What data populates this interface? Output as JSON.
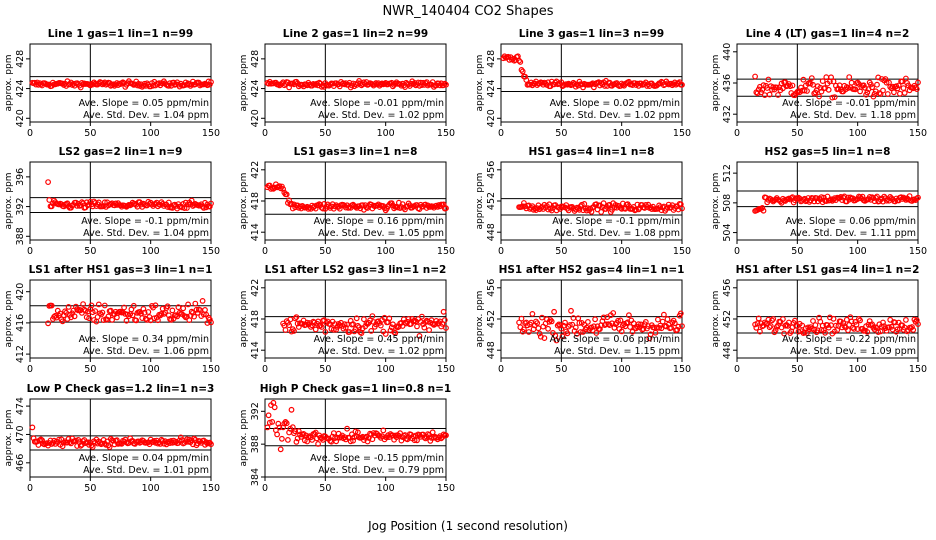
{
  "title": "NWR_140404  CO2 Shapes",
  "xlabel": "Jog Position (1 second resolution)",
  "ylabel": "approx. ppm",
  "slope_prefix": "Ave. Slope = ",
  "slope_unit": " ppm/min",
  "std_prefix": "Ave. Std. Dev. = ",
  "std_unit": " ppm",
  "marker_color": "#ff0000",
  "chart_data": [
    {
      "type": "scatter",
      "title": "Line 1 gas=1 lin=1 n=99",
      "xlim": [
        0,
        150
      ],
      "ylim": [
        419.5,
        430
      ],
      "yticks": [
        420,
        424,
        428
      ],
      "xticks": [
        0,
        50,
        100,
        150
      ],
      "vline": 50,
      "hlines": [
        425.6,
        423.6
      ],
      "mean": 424.6,
      "noise": 0.25,
      "xstart": 2,
      "xend": 150,
      "slope": "0.05",
      "std": "1.04",
      "pattern": "flat"
    },
    {
      "type": "scatter",
      "title": "Line 2 gas=1 lin=2 n=99",
      "xlim": [
        0,
        150
      ],
      "ylim": [
        419.5,
        430
      ],
      "yticks": [
        420,
        424,
        428
      ],
      "xticks": [
        0,
        50,
        100,
        150
      ],
      "vline": 50,
      "hlines": [
        425.6,
        423.6
      ],
      "mean": 424.6,
      "noise": 0.25,
      "xstart": 2,
      "xend": 150,
      "slope": "-0.01",
      "std": "1.02",
      "pattern": "flat"
    },
    {
      "type": "scatter",
      "title": "Line 3 gas=1 lin=3 n=99",
      "xlim": [
        0,
        150
      ],
      "ylim": [
        419.5,
        430
      ],
      "yticks": [
        420,
        424,
        428
      ],
      "xticks": [
        0,
        50,
        100,
        150
      ],
      "vline": 50,
      "hlines": [
        425.6,
        423.6
      ],
      "mean": 424.6,
      "noise": 0.25,
      "xstart": 2,
      "xend": 150,
      "slope": "0.02",
      "std": "1.02",
      "pattern": "early_high",
      "early_val": 428.0
    },
    {
      "type": "scatter",
      "title": "Line 4 (LT) gas=1 lin=4 n=2",
      "xlim": [
        0,
        150
      ],
      "ylim": [
        431,
        441
      ],
      "yticks": [
        432,
        436,
        440
      ],
      "xticks": [
        0,
        50,
        100,
        150
      ],
      "vline": 50,
      "hlines": [
        436.5,
        434.3
      ],
      "mean": 435.4,
      "noise": 0.9,
      "xstart": 15,
      "xend": 150,
      "slope": "-0.01",
      "std": "1.18",
      "pattern": "noisy"
    },
    {
      "type": "scatter",
      "title": "LS2 gas=2 lin=1 n=9",
      "xlim": [
        0,
        150
      ],
      "ylim": [
        387.5,
        398
      ],
      "yticks": [
        388,
        392,
        396
      ],
      "xticks": [
        0,
        50,
        100,
        150
      ],
      "vline": 50,
      "hlines": [
        393.2,
        391.2
      ],
      "mean": 392.2,
      "noise": 0.35,
      "xstart": 15,
      "xend": 150,
      "slope": "-0.1",
      "std": "1.04",
      "pattern": "spike_start",
      "spike_val": 395.3
    },
    {
      "type": "scatter",
      "title": "LS1 gas=3 lin=1 n=8",
      "xlim": [
        0,
        150
      ],
      "ylim": [
        413,
        423
      ],
      "yticks": [
        414,
        418,
        422
      ],
      "xticks": [
        0,
        50,
        100,
        150
      ],
      "vline": 50,
      "hlines": [
        418.3,
        416.3
      ],
      "mean": 417.3,
      "noise": 0.3,
      "xstart": 2,
      "xend": 150,
      "slope": "0.16",
      "std": "1.05",
      "pattern": "early_high",
      "early_val": 419.8
    },
    {
      "type": "scatter",
      "title": "HS1 gas=4 lin=1 n=8",
      "xlim": [
        0,
        150
      ],
      "ylim": [
        447,
        457
      ],
      "yticks": [
        448,
        452,
        456
      ],
      "xticks": [
        0,
        50,
        100,
        150
      ],
      "vline": 50,
      "hlines": [
        452.3,
        450.2
      ],
      "mean": 451.2,
      "noise": 0.35,
      "xstart": 15,
      "xend": 150,
      "slope": "-0.1",
      "std": "1.08",
      "pattern": "flat"
    },
    {
      "type": "scatter",
      "title": "HS2 gas=5 lin=1 n=8",
      "xlim": [
        0,
        150
      ],
      "ylim": [
        503,
        513.5
      ],
      "yticks": [
        504,
        508,
        512
      ],
      "xticks": [
        0,
        50,
        100,
        150
      ],
      "vline": 50,
      "hlines": [
        509.6,
        507.5
      ],
      "mean": 508.5,
      "noise": 0.35,
      "xstart": 15,
      "xend": 150,
      "slope": "0.06",
      "std": "1.11",
      "pattern": "dip_start",
      "dip_val": 507.0
    },
    {
      "type": "scatter",
      "title": "LS1 after HS1 gas=3 lin=1 n=1",
      "xlim": [
        0,
        150
      ],
      "ylim": [
        411.5,
        421.5
      ],
      "yticks": [
        412,
        416,
        420
      ],
      "xticks": [
        0,
        50,
        100,
        150
      ],
      "vline": 50,
      "hlines": [
        418.2,
        416.1
      ],
      "mean": 417.2,
      "noise": 0.9,
      "xstart": 15,
      "xend": 150,
      "slope": "0.34",
      "std": "1.06",
      "pattern": "noisy"
    },
    {
      "type": "scatter",
      "title": "LS1 after LS2 gas=3 lin=1 n=2",
      "xlim": [
        0,
        150
      ],
      "ylim": [
        413,
        423
      ],
      "yticks": [
        414,
        418,
        422
      ],
      "xticks": [
        0,
        50,
        100,
        150
      ],
      "vline": 50,
      "hlines": [
        418.3,
        416.3
      ],
      "mean": 417.3,
      "noise": 0.8,
      "xstart": 15,
      "xend": 150,
      "slope": "0.45",
      "std": "1.02",
      "pattern": "noisy"
    },
    {
      "type": "scatter",
      "title": "HS1 after HS2 gas=4 lin=1 n=1",
      "xlim": [
        0,
        150
      ],
      "ylim": [
        447,
        457
      ],
      "yticks": [
        448,
        452,
        456
      ],
      "xticks": [
        0,
        50,
        100,
        150
      ],
      "vline": 50,
      "hlines": [
        452.3,
        450.2
      ],
      "mean": 451.2,
      "noise": 1.1,
      "xstart": 15,
      "xend": 150,
      "slope": "0.06",
      "std": "1.15",
      "pattern": "noisy"
    },
    {
      "type": "scatter",
      "title": "HS1 after LS1 gas=4 lin=1 n=2",
      "xlim": [
        0,
        150
      ],
      "ylim": [
        447,
        457
      ],
      "yticks": [
        448,
        452,
        456
      ],
      "xticks": [
        0,
        50,
        100,
        150
      ],
      "vline": 50,
      "hlines": [
        452.3,
        450.2
      ],
      "mean": 451.2,
      "noise": 0.7,
      "xstart": 15,
      "xend": 150,
      "slope": "-0.22",
      "std": "1.09",
      "pattern": "noisy"
    },
    {
      "type": "scatter",
      "title": "Low P Check gas=1.2 lin=1 n=3",
      "xlim": [
        0,
        150
      ],
      "ylim": [
        464,
        475
      ],
      "yticks": [
        466,
        470,
        474
      ],
      "xticks": [
        0,
        50,
        100,
        150
      ],
      "vline": 50,
      "hlines": [
        469.8,
        467.8
      ],
      "mean": 468.9,
      "noise": 0.4,
      "xstart": 2,
      "xend": 150,
      "slope": "0.04",
      "std": "1.01",
      "pattern": "spike_start",
      "spike_val": 471.0
    },
    {
      "type": "scatter",
      "title": "High P Check gas=1 lin=0.8 n=1",
      "xlim": [
        0,
        150
      ],
      "ylim": [
        384,
        393.5
      ],
      "yticks": [
        384,
        388,
        392
      ],
      "xticks": [
        0,
        50,
        100,
        150
      ],
      "vline": 50,
      "hlines": [
        389.9,
        387.8
      ],
      "mean": 388.9,
      "noise": 0.5,
      "xstart": 2,
      "xend": 150,
      "slope": "-0.15",
      "std": "0.79",
      "pattern": "scatter_start"
    }
  ]
}
